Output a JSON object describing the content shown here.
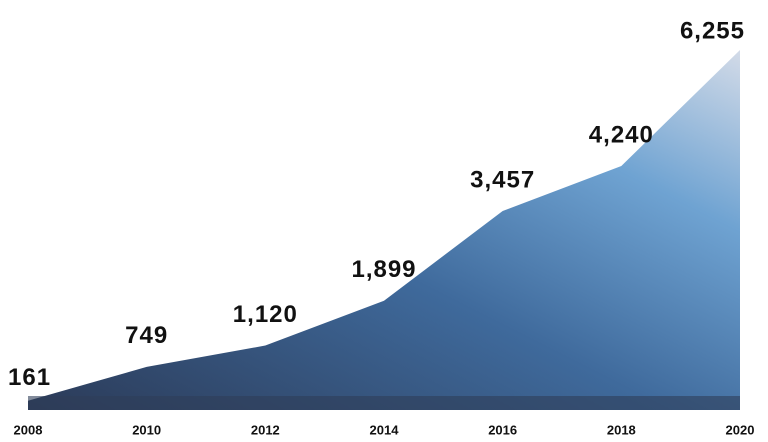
{
  "chart_data": {
    "type": "area",
    "x": [
      2008,
      2010,
      2012,
      2014,
      2016,
      2018,
      2020
    ],
    "values": [
      161,
      749,
      1120,
      1899,
      3457,
      4240,
      6255
    ],
    "value_labels": [
      "161",
      "749",
      "1,120",
      "1,899",
      "3,457",
      "4,240",
      "6,255"
    ],
    "xlim": [
      2008,
      2020
    ],
    "xticks": [
      2008,
      2010,
      2012,
      2014,
      2016,
      2018,
      2020
    ]
  }
}
